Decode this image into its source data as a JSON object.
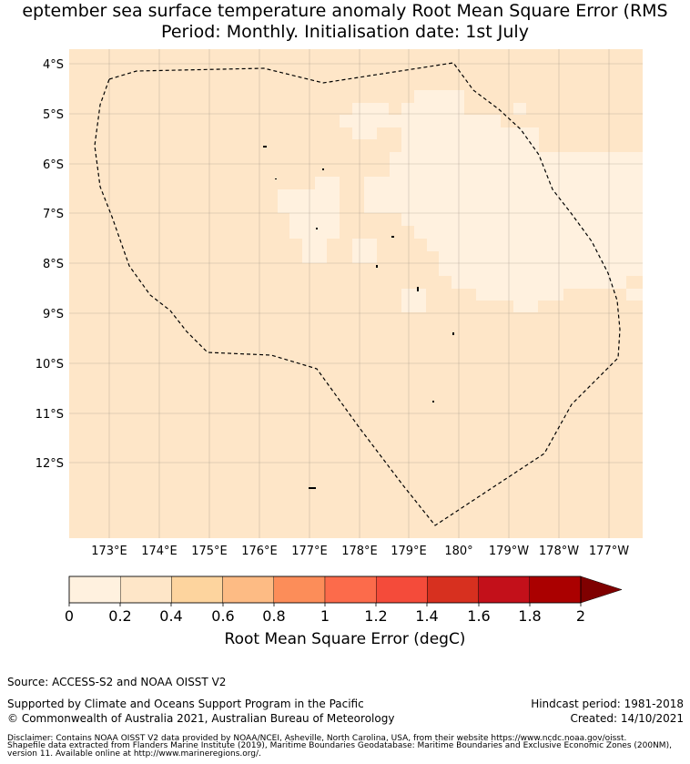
{
  "title": {
    "line1": "eptember sea surface temperature anomaly Root Mean Square Error (RMS",
    "line2": "Period: Monthly. Initialisation date: 1st July"
  },
  "map": {
    "lat_labels": [
      "4°S",
      "5°S",
      "6°S",
      "7°S",
      "8°S",
      "9°S",
      "10°S",
      "11°S",
      "12°S"
    ],
    "lon_labels": [
      "173°E",
      "174°E",
      "175°E",
      "176°E",
      "177°E",
      "178°E",
      "179°E",
      "180°",
      "179°W",
      "178°W",
      "177°W"
    ],
    "field_color": "#fee6c8",
    "low_color": "#fff1df",
    "border_style": "dashed"
  },
  "colorbar": {
    "ticks": [
      "0",
      "0.2",
      "0.4",
      "0.6",
      "0.8",
      "1",
      "1.2",
      "1.4",
      "1.6",
      "1.8",
      "2"
    ],
    "colors": [
      "#fff1df",
      "#fee6c8",
      "#fdd49e",
      "#fdbb84",
      "#fc8d59",
      "#fc6b4b",
      "#f44b3a",
      "#d7301f",
      "#c3101a",
      "#aa0000"
    ],
    "extend_color": "#7f0000",
    "label": "Root Mean Square Error (degC)"
  },
  "footer": {
    "source": "Source: ACCESS-S2 and NOAA OISST V2",
    "supported": "Supported by Climate and Oceans Support Program in the Pacific",
    "copyright": "© Commonwealth of Australia 2021, Australian Bureau of Meteorology",
    "hindcast": "Hindcast period: 1981-2018",
    "created": "Created: 14/10/2021",
    "disclaimer1": "Disclaimer: Contains NOAA OISST V2 data provided by NOAA/NCEI, Asheville, North Carolina, USA, from their website https://www.ncdc.noaa.gov/oisst.",
    "disclaimer2": "Shapefile data extracted from Flanders Marine Institute (2019), Maritime Boundaries Geodatabase: Maritime Boundaries and Exclusive Economic Zones (200NM),",
    "disclaimer3": "version 11. Available online at http://www.marineregions.org/."
  }
}
